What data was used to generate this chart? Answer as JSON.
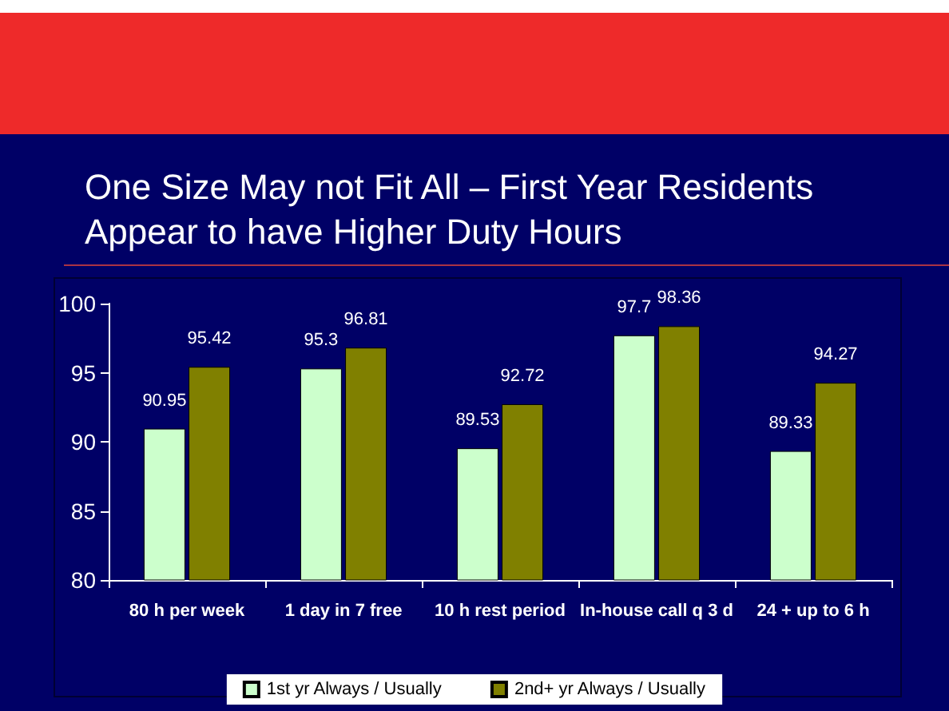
{
  "chart_data": {
    "type": "bar",
    "title": "One Size May not Fit All – First Year Residents Appear to have Higher Duty Hours",
    "categories": [
      "80 h per week",
      "1 day in 7 free",
      "10 h rest period",
      "In-house call q 3 d",
      "24 + up to 6 h"
    ],
    "series": [
      {
        "name": "1st yr Always / Usually",
        "color": "#ccffcc",
        "values": [
          90.95,
          95.3,
          89.53,
          97.7,
          89.33
        ]
      },
      {
        "name": "2nd+ yr Always / Usually",
        "color": "#808000",
        "values": [
          95.42,
          96.81,
          92.72,
          98.36,
          94.27
        ]
      }
    ],
    "ylim": [
      80,
      100
    ],
    "yticks": [
      80,
      85,
      90,
      95,
      100
    ],
    "grid": false,
    "legend": "bottom",
    "data_labels": true
  }
}
